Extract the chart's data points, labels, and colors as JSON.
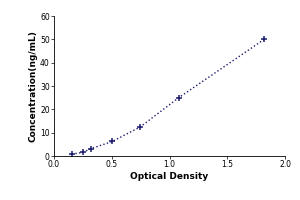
{
  "xlabel": "Optical Density",
  "ylabel": "Concentration(ng/mL)",
  "x_data": [
    0.154,
    0.248,
    0.319,
    0.506,
    0.748,
    1.08,
    1.82
  ],
  "y_data": [
    0.78,
    1.56,
    3.13,
    6.25,
    12.5,
    25.0,
    50.0
  ],
  "xlim": [
    0,
    2
  ],
  "ylim": [
    0,
    60
  ],
  "xticks": [
    0,
    0.5,
    1.0,
    1.5,
    2.0
  ],
  "yticks": [
    0,
    10,
    20,
    30,
    40,
    50,
    60
  ],
  "marker": "+",
  "marker_color": "#1a1a6e",
  "line_style": "dotted",
  "line_color": "#1a1a6e",
  "background_color": "#ffffff",
  "font_size_labels": 6.5,
  "font_size_ticks": 5.5,
  "marker_size": 5,
  "line_width": 1.0,
  "label_fontweight": "bold"
}
